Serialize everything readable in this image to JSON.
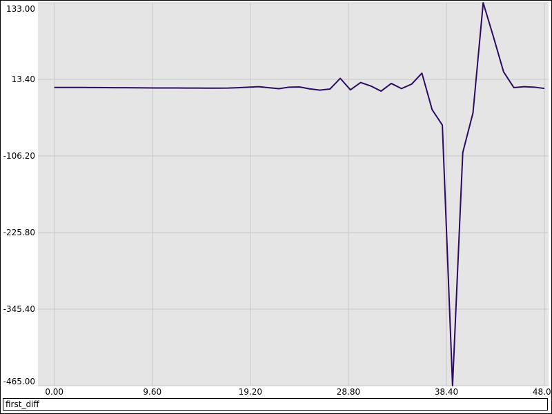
{
  "chart_data": {
    "type": "line",
    "title": "",
    "xlabel": "",
    "ylabel": "",
    "xlim": [
      -1.6,
      48.4
    ],
    "ylim": [
      -465.0,
      133.0
    ],
    "x_ticks": [
      0.0,
      9.6,
      19.2,
      28.8,
      38.4,
      48.0
    ],
    "x_tick_labels": [
      "0.00",
      "9.60",
      "19.20",
      "28.80",
      "38.40",
      "48.00"
    ],
    "y_ticks": [
      133.0,
      13.4,
      -106.2,
      -225.8,
      -345.4,
      -465.0
    ],
    "y_tick_labels": [
      "133.00",
      "13.40",
      "-106.20",
      "-225.80",
      "-345.40",
      "-465.00"
    ],
    "grid": true,
    "legend_position": "bottom",
    "colors": {
      "line": "#2a0a62",
      "plot_bg": "#e5e5e5",
      "grid": "#c8c8c8"
    },
    "series": [
      {
        "name": "first_diff",
        "x": [
          0,
          1,
          2,
          3,
          4,
          5,
          6,
          7,
          8,
          9,
          10,
          11,
          12,
          13,
          14,
          15,
          16,
          17,
          18,
          19,
          20,
          21,
          22,
          23,
          24,
          25,
          26,
          27,
          28,
          29,
          30,
          31,
          32,
          33,
          34,
          35,
          36,
          37,
          38,
          39,
          40,
          41,
          42,
          43,
          44,
          45,
          46,
          47,
          48
        ],
        "values": [
          0.8,
          0.8,
          0.7,
          0.7,
          0.6,
          0.5,
          0.4,
          0.3,
          0.2,
          0.1,
          0.0,
          -0.1,
          -0.1,
          -0.2,
          -0.2,
          -0.3,
          -0.3,
          -0.2,
          0.3,
          1.1,
          2.0,
          0.4,
          -1.2,
          1.2,
          1.5,
          -1.4,
          -3.4,
          -1.7,
          15.0,
          -3.0,
          8.5,
          3.0,
          -5.0,
          7.0,
          -1.0,
          6.0,
          23.0,
          -34.0,
          -58.0,
          -465.0,
          -101.0,
          -39.0,
          133.0,
          80.0,
          25.0,
          0.5,
          2.0,
          1.2,
          -0.8
        ]
      }
    ]
  },
  "legend": {
    "label": "first_diff"
  }
}
